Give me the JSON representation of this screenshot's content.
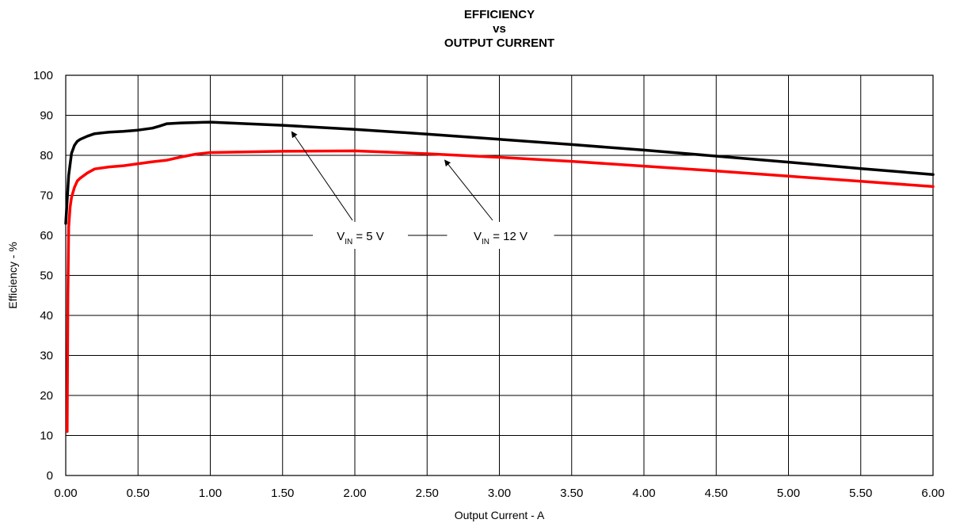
{
  "chart_data": {
    "type": "line",
    "title": [
      "EFFICIENCY",
      "vs",
      "OUTPUT CURRENT"
    ],
    "xlabel": "Output Current - A",
    "ylabel": "Efficiency - %",
    "xlim": [
      0,
      6
    ],
    "ylim": [
      0,
      100
    ],
    "x_ticks": [
      "0.00",
      "0.50",
      "1.00",
      "1.50",
      "2.00",
      "2.50",
      "3.00",
      "3.50",
      "4.00",
      "4.50",
      "5.00",
      "5.50",
      "6.00"
    ],
    "y_ticks": [
      "0",
      "10",
      "20",
      "30",
      "40",
      "50",
      "60",
      "70",
      "80",
      "90",
      "100"
    ],
    "grid": true,
    "series": [
      {
        "color": "#000000",
        "x": [
          0.0,
          0.02,
          0.04,
          0.06,
          0.08,
          0.1,
          0.15,
          0.2,
          0.3,
          0.4,
          0.5,
          0.6,
          0.65,
          0.7,
          0.8,
          0.9,
          1.0,
          1.5,
          2.0,
          2.5,
          3.0,
          3.5,
          4.0,
          4.5,
          5.0,
          5.5,
          6.0
        ],
        "y": [
          63.0,
          75.0,
          80.5,
          82.5,
          83.5,
          84.0,
          84.8,
          85.4,
          85.8,
          86.0,
          86.3,
          86.8,
          87.3,
          87.9,
          88.1,
          88.2,
          88.3,
          87.5,
          86.5,
          85.3,
          84.0,
          82.7,
          81.3,
          79.8,
          78.3,
          76.7,
          75.2
        ]
      },
      {
        "color": "#ff0000",
        "x": [
          0.01,
          0.015,
          0.02,
          0.03,
          0.04,
          0.06,
          0.08,
          0.1,
          0.15,
          0.2,
          0.3,
          0.4,
          0.5,
          0.6,
          0.7,
          0.8,
          0.9,
          1.0,
          1.5,
          2.0,
          2.5,
          3.0,
          3.5,
          4.0,
          4.5,
          5.0,
          5.5,
          6.0
        ],
        "y": [
          11.0,
          45.0,
          62.0,
          67.0,
          69.5,
          72.0,
          73.6,
          74.3,
          75.6,
          76.6,
          77.1,
          77.4,
          77.9,
          78.4,
          78.8,
          79.6,
          80.3,
          80.7,
          81.0,
          81.1,
          80.4,
          79.5,
          78.5,
          77.3,
          76.1,
          74.8,
          73.5,
          72.2
        ]
      }
    ],
    "annotations": [
      {
        "main": "V",
        "sub": "IN",
        "rest": " = 5 V",
        "series_index": 0,
        "target": [
          1.53,
          87.5
        ]
      },
      {
        "main": "V",
        "sub": "IN",
        "rest": " = 12 V",
        "series_index": 1,
        "target": [
          2.6,
          80.4
        ]
      }
    ]
  }
}
